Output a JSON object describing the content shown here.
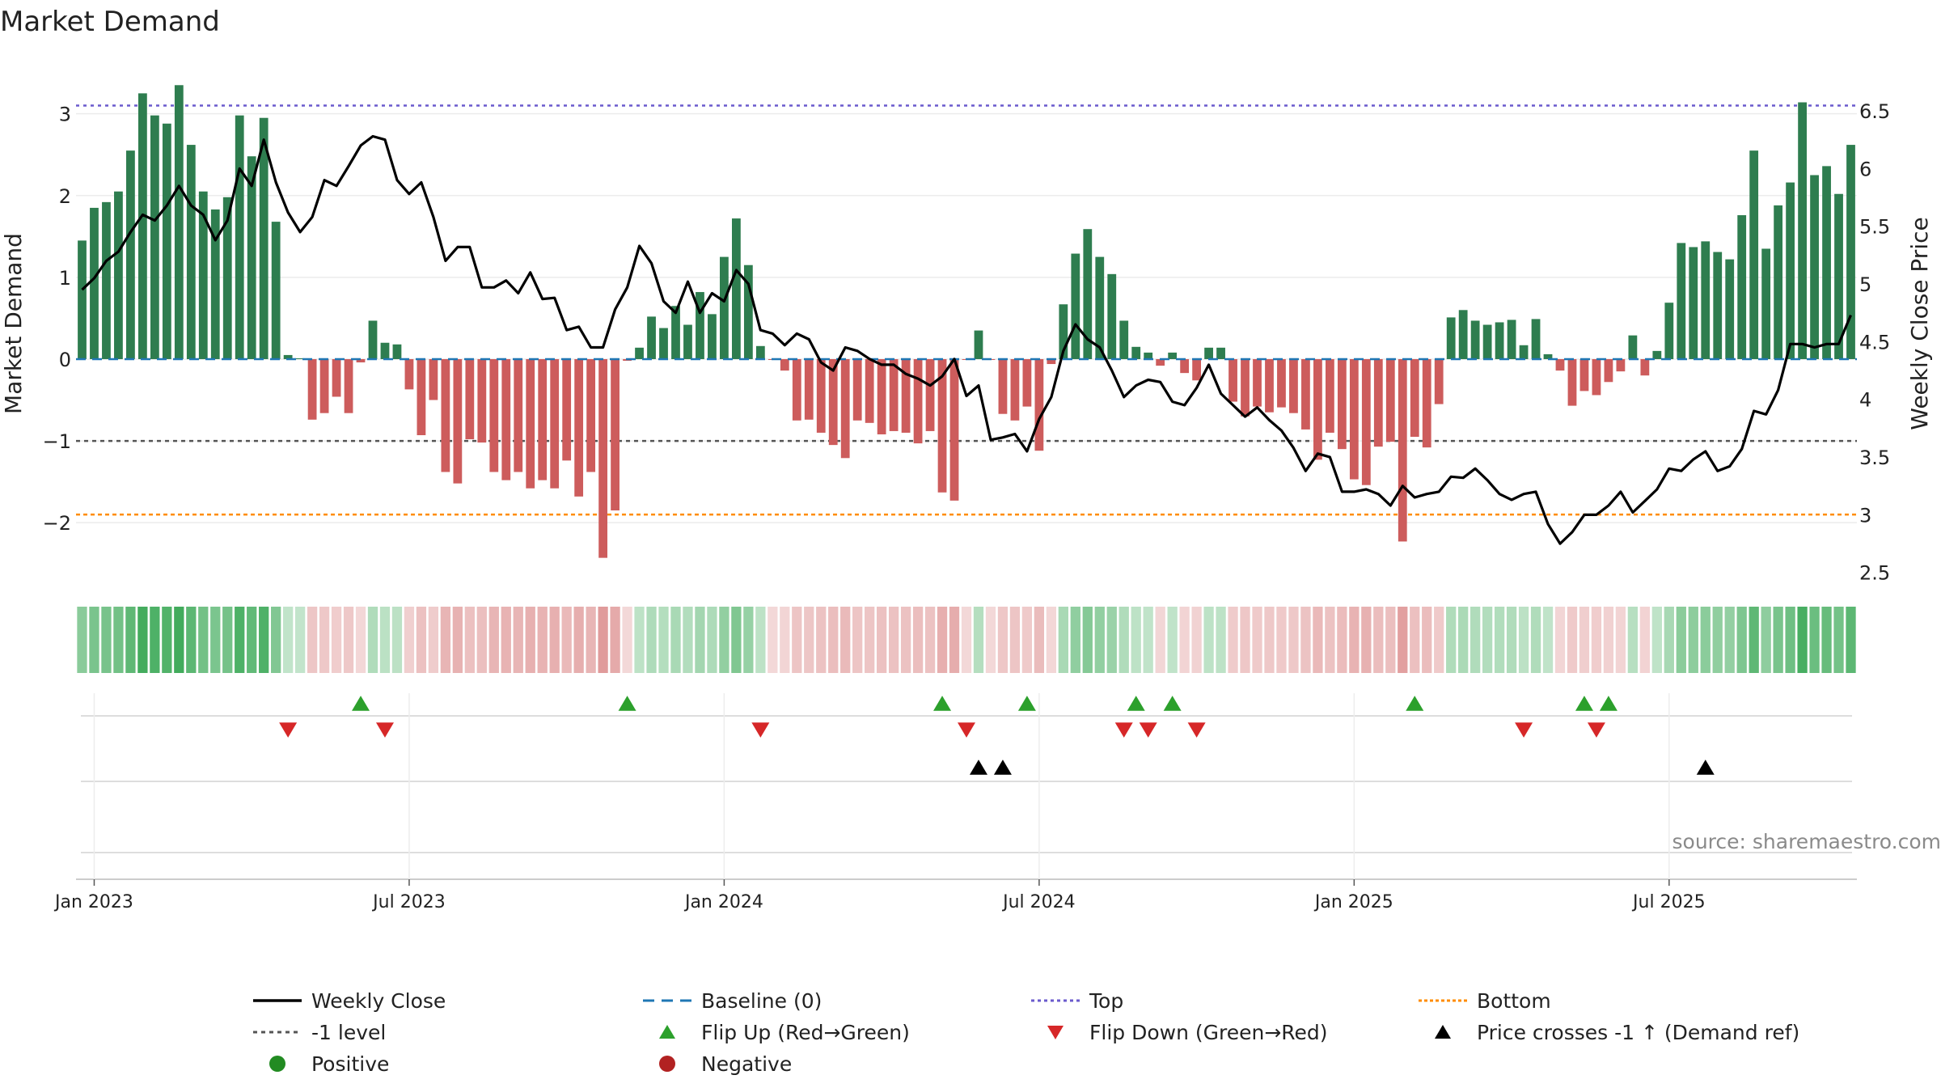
{
  "chart_data": {
    "type": "bar+line",
    "title": "Market Demand",
    "ylabel": "Market Demand",
    "ylabel_right": "Weekly Close Price",
    "source": "source: sharemaestro.com",
    "ylim": [
      -2.75,
      3.6
    ],
    "ylim_right": [
      2.4,
      6.9
    ],
    "yticks": [
      3,
      2,
      1,
      0,
      -1,
      -2
    ],
    "ytick_labels": [
      "3",
      "2",
      "1",
      "0",
      "−1",
      "−2"
    ],
    "yticks_right": [
      6.5,
      6,
      5.5,
      5,
      4.5,
      4,
      3.5,
      3,
      2.5
    ],
    "ytick_labels_right": [
      "6.5",
      "6",
      "5.5",
      "5",
      "4.5",
      "4",
      "3.5",
      "3",
      "2.5"
    ],
    "x_tick_labels": [
      "Jan 2023",
      "Jul 2023",
      "Jan 2024",
      "Jul 2024",
      "Jan 2025",
      "Jul 2025"
    ],
    "x_tick_weeks": [
      1.5,
      27.5,
      53.5,
      79.5,
      105.5,
      131.5
    ],
    "top_level": 3.1,
    "minus1_level": -1,
    "bottom_level": -1.9,
    "colors": {
      "positive": "#2e7d4f",
      "negative": "#cd5c5c",
      "line": "#000000",
      "baseline": "#1f77b4",
      "top": "#6a5acd",
      "minus1": "#555555",
      "bottom": "#ff8c00",
      "flip_up": "#2ca02c",
      "flip_down": "#d62728",
      "cross": "#000000",
      "positive_dot": "#228b22",
      "negative_dot": "#b22222"
    },
    "demand": [
      1.45,
      1.85,
      1.92,
      2.05,
      2.55,
      3.25,
      2.98,
      2.88,
      3.35,
      2.62,
      2.05,
      1.83,
      1.98,
      2.98,
      2.48,
      2.95,
      1.68,
      0.05,
      0.01,
      -0.74,
      -0.66,
      -0.46,
      -0.66,
      -0.04,
      0.47,
      0.2,
      0.18,
      -0.37,
      -0.93,
      -0.5,
      -1.38,
      -1.52,
      -0.98,
      -1.02,
      -1.38,
      -1.48,
      -1.38,
      -1.58,
      -1.48,
      -1.58,
      -1.24,
      -1.68,
      -1.38,
      -2.43,
      -1.85,
      -0.02,
      0.14,
      0.52,
      0.38,
      0.65,
      0.42,
      0.82,
      0.55,
      1.25,
      1.72,
      1.15,
      0.16,
      -0.01,
      -0.14,
      -0.75,
      -0.74,
      -0.9,
      -1.05,
      -1.21,
      -0.75,
      -0.78,
      -0.92,
      -0.88,
      -0.9,
      -1.03,
      -0.88,
      -1.63,
      -1.73,
      -0.01,
      0.35,
      -0.01,
      -0.67,
      -0.75,
      -0.58,
      -1.12,
      -0.06,
      0.67,
      1.29,
      1.59,
      1.25,
      1.04,
      0.47,
      0.15,
      0.08,
      -0.08,
      0.08,
      -0.17,
      -0.26,
      0.14,
      0.14,
      -0.52,
      -0.7,
      -0.58,
      -0.65,
      -0.59,
      -0.66,
      -0.86,
      -1.23,
      -0.9,
      -1.1,
      -1.47,
      -1.54,
      -1.07,
      -1.01,
      -2.23,
      -0.95,
      -1.08,
      -0.55,
      0.51,
      0.6,
      0.47,
      0.42,
      0.45,
      0.48,
      0.17,
      0.49,
      0.06,
      -0.14,
      -0.57,
      -0.39,
      -0.44,
      -0.28,
      -0.15,
      0.29,
      -0.2,
      0.1,
      0.69,
      1.42,
      1.37,
      1.44,
      1.31,
      1.22,
      1.76,
      2.55,
      1.35,
      1.88,
      2.16,
      3.14,
      2.25,
      2.36,
      2.02,
      2.62
    ],
    "weekly_close": [
      4.95,
      5.05,
      5.2,
      5.28,
      5.45,
      5.6,
      5.55,
      5.68,
      5.85,
      5.68,
      5.6,
      5.38,
      5.55,
      6.0,
      5.85,
      6.25,
      5.88,
      5.62,
      5.45,
      5.58,
      5.9,
      5.85,
      6.02,
      6.2,
      6.28,
      6.25,
      5.9,
      5.78,
      5.88,
      5.58,
      5.2,
      5.32,
      5.32,
      4.97,
      4.97,
      5.03,
      4.92,
      5.1,
      4.87,
      4.88,
      4.6,
      4.63,
      4.45,
      4.45,
      4.78,
      4.97,
      5.33,
      5.18,
      4.85,
      4.75,
      5.02,
      4.75,
      4.92,
      4.85,
      5.12,
      5.0,
      4.6,
      4.57,
      4.47,
      4.57,
      4.52,
      4.32,
      4.25,
      4.45,
      4.42,
      4.35,
      4.3,
      4.3,
      4.22,
      4.18,
      4.12,
      4.2,
      4.35,
      4.03,
      4.12,
      3.65,
      3.67,
      3.7,
      3.55,
      3.83,
      4.02,
      4.42,
      4.65,
      4.52,
      4.45,
      4.25,
      4.02,
      4.12,
      4.17,
      4.15,
      3.98,
      3.95,
      4.1,
      4.3,
      4.05,
      3.95,
      3.85,
      3.93,
      3.82,
      3.73,
      3.58,
      3.38,
      3.53,
      3.5,
      3.2,
      3.2,
      3.22,
      3.18,
      3.08,
      3.25,
      3.15,
      3.18,
      3.2,
      3.33,
      3.32,
      3.4,
      3.3,
      3.18,
      3.13,
      3.18,
      3.2,
      2.92,
      2.75,
      2.85,
      3.0,
      3.0,
      3.08,
      3.2,
      3.02,
      3.12,
      3.22,
      3.4,
      3.38,
      3.48,
      3.55,
      3.38,
      3.42,
      3.57,
      3.9,
      3.87,
      4.08,
      4.48,
      4.48,
      4.45,
      4.48,
      4.48,
      4.73
    ],
    "flip_up_weeks": [
      23,
      45,
      71,
      78,
      87,
      90,
      110,
      124,
      126
    ],
    "flip_down_weeks": [
      17,
      25,
      56,
      73,
      86,
      88,
      92,
      119,
      125
    ],
    "cross_weeks": [
      74,
      76,
      134
    ],
    "legend": {
      "weekly_close": "Weekly Close",
      "baseline": "Baseline (0)",
      "top": "Top",
      "bottom": "Bottom",
      "minus1": "-1 level",
      "flip_up": "Flip Up (Red→Green)",
      "flip_down": "Flip Down (Green→Red)",
      "cross": "Price crosses -1 ↑ (Demand ref)",
      "positive": "Positive",
      "negative": "Negative"
    }
  }
}
